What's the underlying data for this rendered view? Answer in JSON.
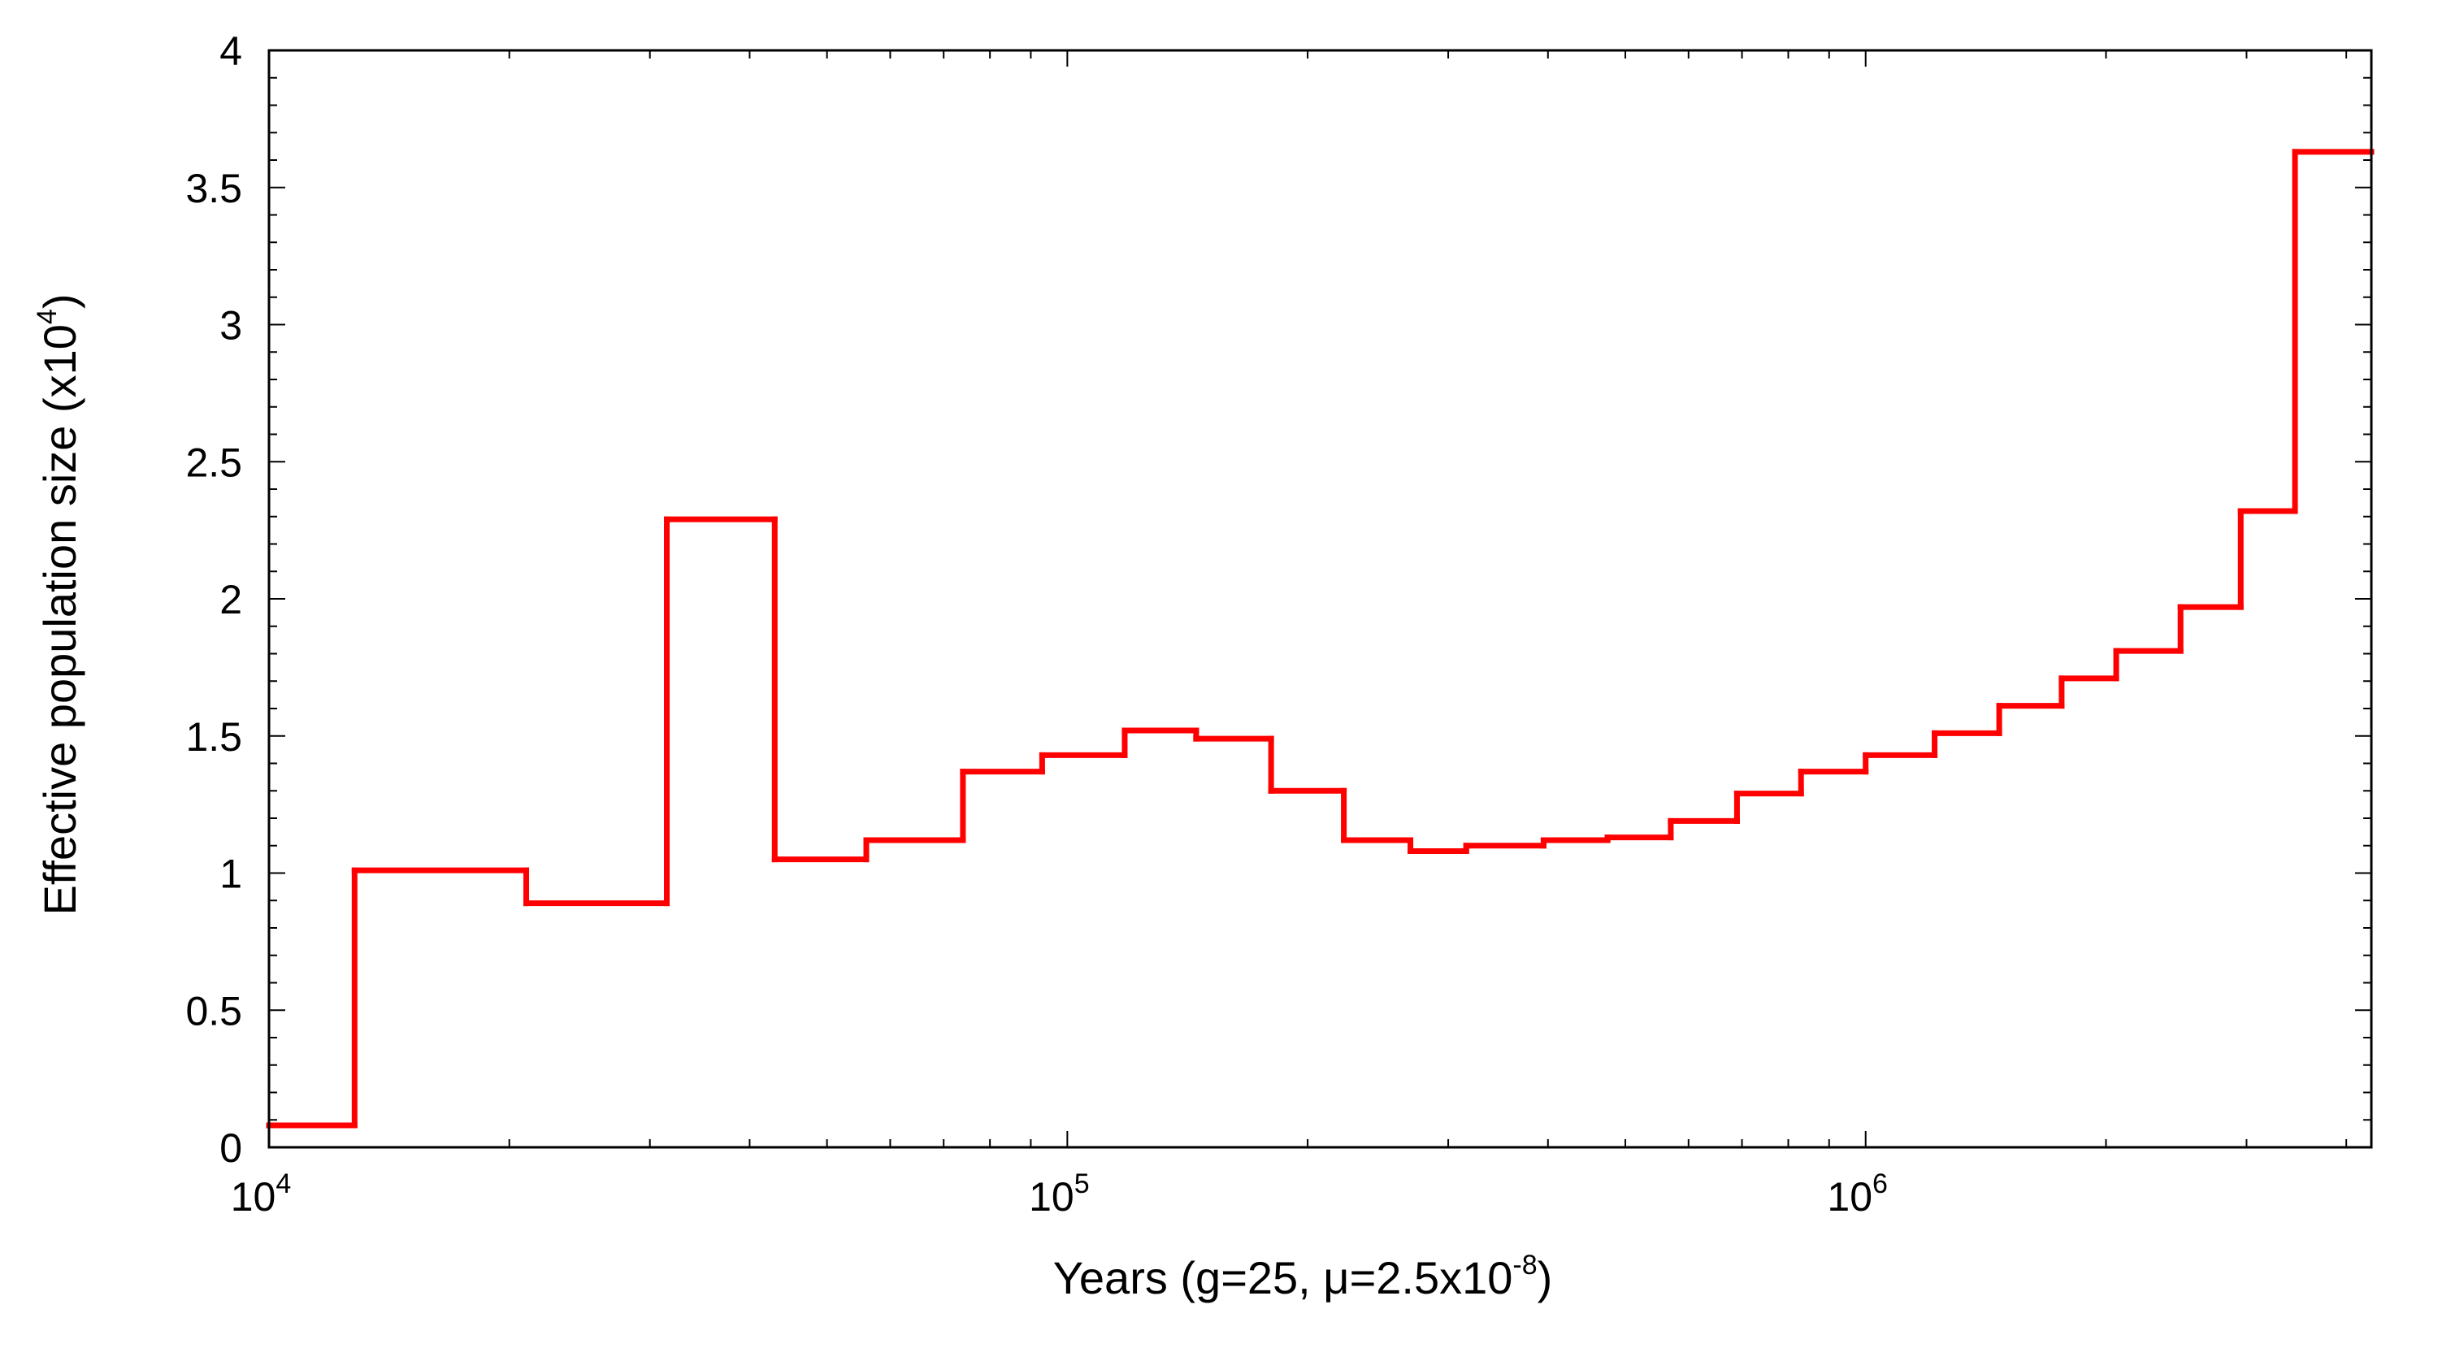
{
  "chart_data": {
    "type": "line",
    "subtype": "step",
    "xscale": "log",
    "xlim": [
      10000,
      4300000
    ],
    "ylim": [
      0,
      4
    ],
    "grid": false,
    "legend": "none",
    "xlabel": {
      "main": "Years (g=25, μ=2.5x10",
      "sup": "-8",
      "tail": ")"
    },
    "ylabel": {
      "main": "Effective population size (x10",
      "sup": "4",
      "tail": ")"
    },
    "y_ticks": [
      {
        "value": 0,
        "label": "0"
      },
      {
        "value": 0.5,
        "label": "0.5"
      },
      {
        "value": 1,
        "label": "1"
      },
      {
        "value": 1.5,
        "label": "1.5"
      },
      {
        "value": 2,
        "label": "2"
      },
      {
        "value": 2.5,
        "label": "2.5"
      },
      {
        "value": 3,
        "label": "3"
      },
      {
        "value": 3.5,
        "label": "3.5"
      },
      {
        "value": 4,
        "label": "4"
      }
    ],
    "x_ticks": [
      {
        "value": 10000,
        "base": "10",
        "exp": "4"
      },
      {
        "value": 100000,
        "base": "10",
        "exp": "5"
      },
      {
        "value": 1000000,
        "base": "10",
        "exp": "6"
      }
    ],
    "series": [
      {
        "color": "#ff0000",
        "x": [
          10000,
          12800,
          21000,
          31500,
          43000,
          56000,
          74000,
          93000,
          118000,
          145000,
          180000,
          222000,
          269000,
          316000,
          395000,
          475000,
          570000,
          690000,
          830000,
          1000000,
          1220000,
          1470000,
          1760000,
          2060000,
          2480000,
          2950000,
          3450000
        ],
        "y": [
          0.08,
          1.01,
          0.89,
          2.29,
          1.05,
          1.12,
          1.37,
          1.43,
          1.52,
          1.49,
          1.3,
          1.12,
          1.08,
          1.1,
          1.12,
          1.13,
          1.19,
          1.29,
          1.37,
          1.43,
          1.51,
          1.61,
          1.71,
          1.81,
          1.97,
          2.32,
          3.63
        ]
      }
    ]
  }
}
